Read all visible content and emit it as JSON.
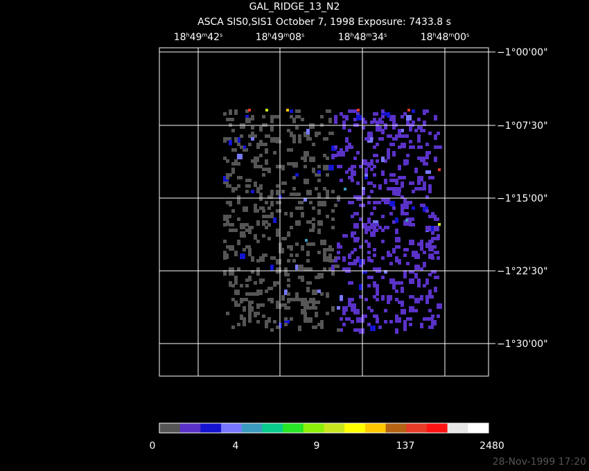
{
  "header": {
    "title": "GAL_RIDGE_13_N2",
    "subtitle": "ASCA SIS0,SIS1 October 7, 1998 Exposure: 7433.8 s"
  },
  "ra_labels": [
    "18h49m42s",
    "18h49m08s",
    "18h48m34s",
    "18h48m00s"
  ],
  "dec_labels": [
    "−1°00'00\"",
    "−1°07'30\"",
    "−1°15'00\"",
    "−1°22'30\"",
    "−1°30'00\""
  ],
  "colorbar": {
    "colors": [
      "#555555",
      "#5a32c8",
      "#1414d2",
      "#7878ff",
      "#3c9bbe",
      "#0acc8c",
      "#28e628",
      "#8cf00a",
      "#c8e61e",
      "#ffff00",
      "#ffc800",
      "#b46414",
      "#e63c28",
      "#ff1414",
      "#e6e6e6",
      "#ffffff"
    ],
    "labels": [
      "0",
      "4",
      "9",
      "137",
      "2480"
    ]
  },
  "timestamp": "28-Nov-1999 17:20"
}
